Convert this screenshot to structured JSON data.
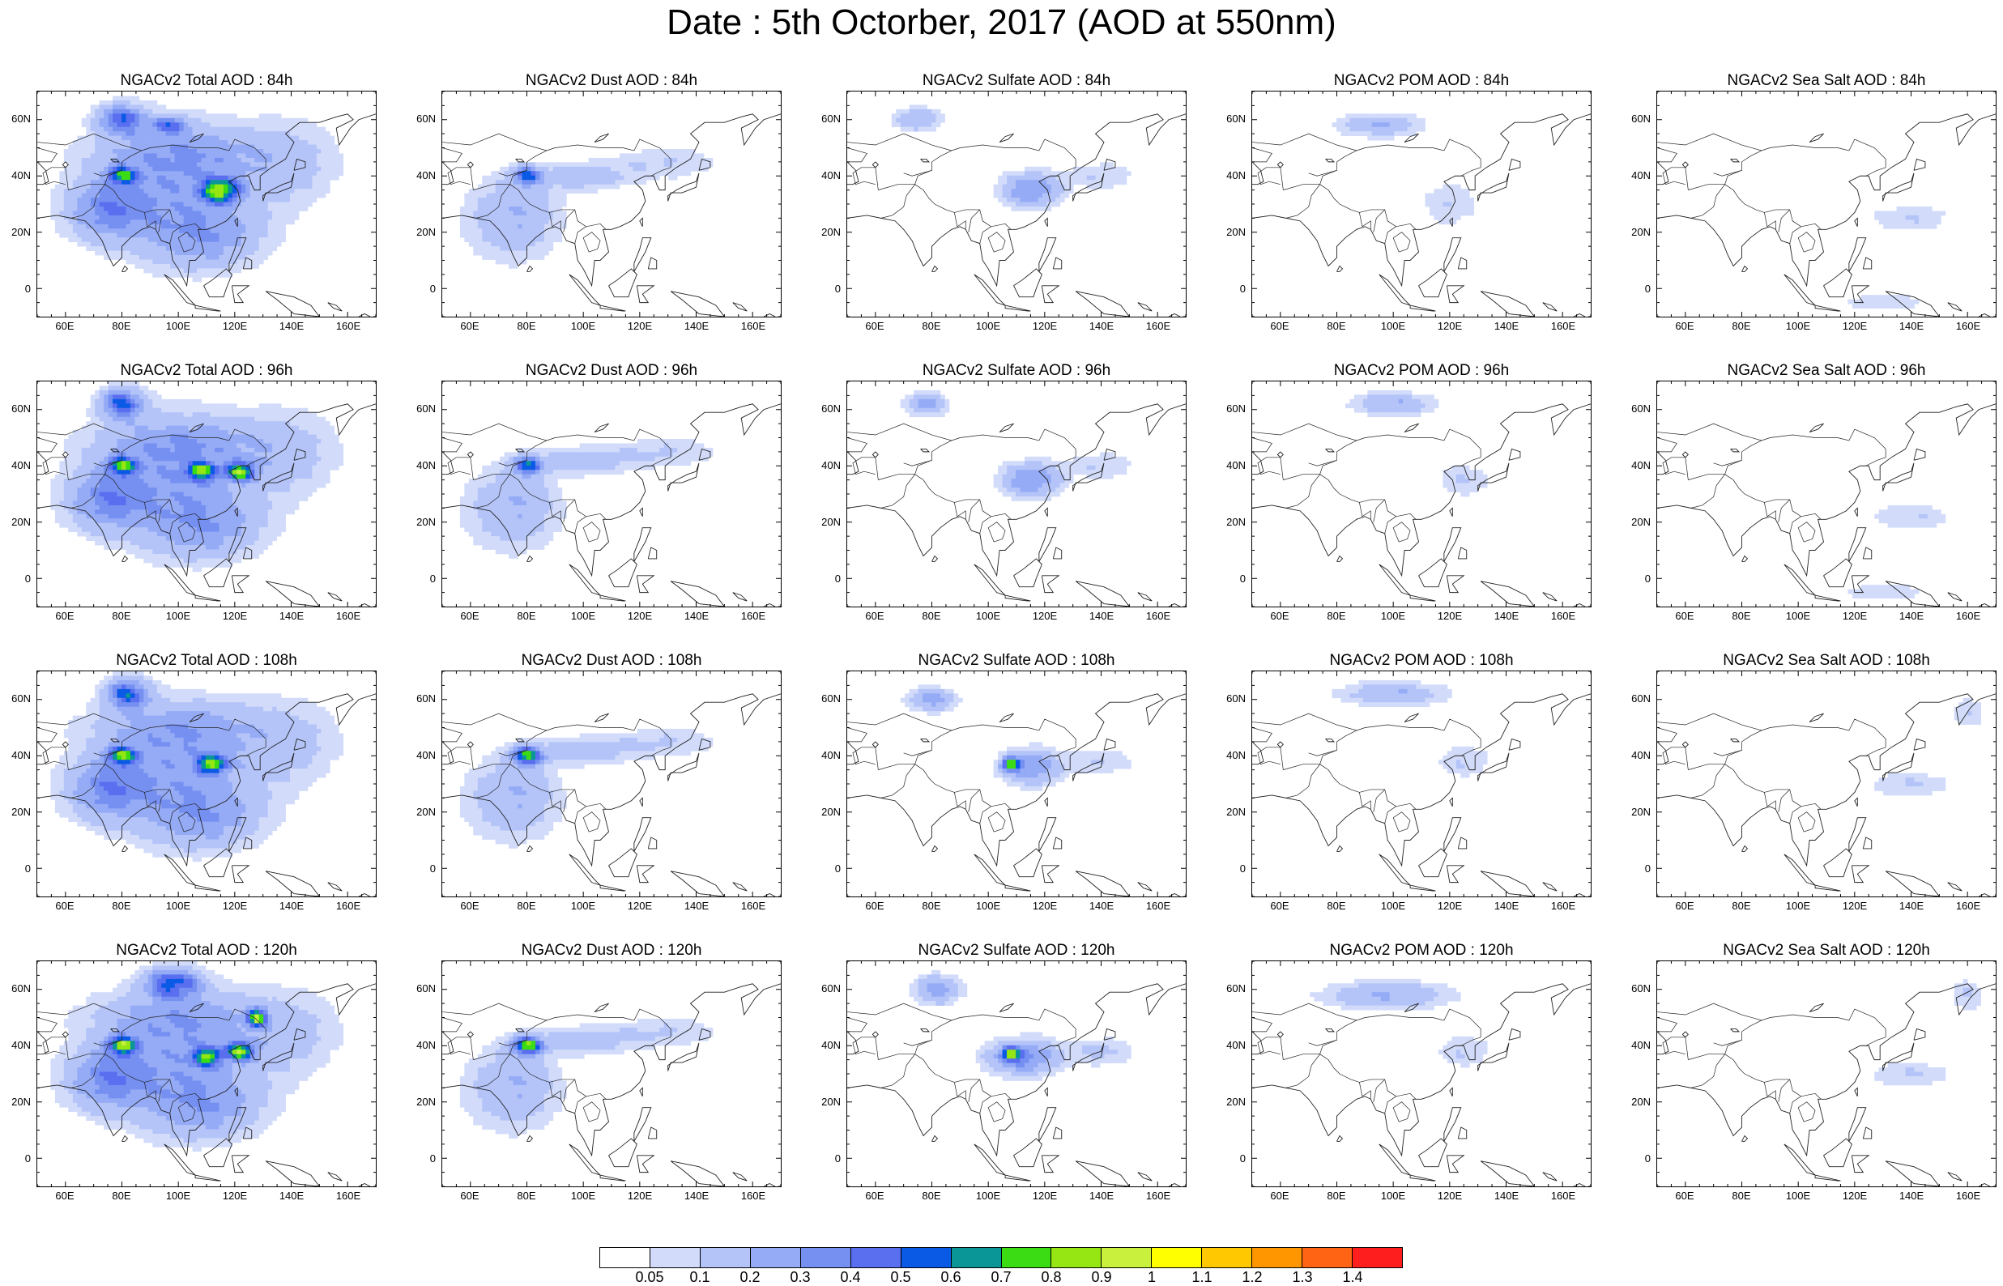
{
  "title": "Date : 5th Octorber, 2017 (AOD at 550nm)",
  "y_tick_labels": [
    "60N",
    "40N",
    "20N",
    "0"
  ],
  "x_tick_labels": [
    "60E",
    "80E",
    "100E",
    "120E",
    "140E",
    "160E"
  ],
  "map_extent": {
    "lon_min": 50,
    "lon_max": 170,
    "lat_min": -10,
    "lat_max": 70
  },
  "species": [
    "Total",
    "Dust",
    "Sulfate",
    "POM",
    "Sea Salt"
  ],
  "forecast_hours": [
    "84h",
    "96h",
    "108h",
    "120h"
  ],
  "panels": [
    [
      "NGACv2 Total AOD : 84h",
      "NGACv2 Dust AOD : 84h",
      "NGACv2 Sulfate AOD : 84h",
      "NGACv2 POM AOD : 84h",
      "NGACv2 Sea Salt AOD : 84h"
    ],
    [
      "NGACv2 Total AOD : 96h",
      "NGACv2 Dust AOD : 96h",
      "NGACv2 Sulfate AOD : 96h",
      "NGACv2 POM AOD : 96h",
      "NGACv2 Sea Salt AOD : 96h"
    ],
    [
      "NGACv2 Total AOD : 108h",
      "NGACv2 Dust AOD : 108h",
      "NGACv2 Sulfate AOD : 108h",
      "NGACv2 POM AOD : 108h",
      "NGACv2 Sea Salt AOD : 108h"
    ],
    [
      "NGACv2 Total AOD : 120h",
      "NGACv2 Dust AOD : 120h",
      "NGACv2 Sulfate AOD : 120h",
      "NGACv2 POM AOD : 120h",
      "NGACv2 Sea Salt  AOD : 120h"
    ]
  ],
  "colorbar": {
    "labels": [
      "0.05",
      "0.1",
      "0.2",
      "0.3",
      "0.4",
      "0.5",
      "0.6",
      "0.7",
      "0.8",
      "0.9",
      "1",
      "1.1",
      "1.2",
      "1.3",
      "1.4"
    ],
    "colors": [
      "#ffffff",
      "#d2dcfa",
      "#b4c4f8",
      "#95abf6",
      "#7690f2",
      "#5a6ef0",
      "#0a5ae6",
      "#0a9696",
      "#3cdc14",
      "#96e614",
      "#c8f03c",
      "#ffff00",
      "#ffc800",
      "#ff9600",
      "#ff6414",
      "#ff1e1e"
    ]
  },
  "chart_data": [
    {
      "type": "heatmap",
      "title": "NGACv2 Total AOD : 84h",
      "lon_range": [
        50,
        170
      ],
      "lat_range": [
        -10,
        70
      ],
      "blobs": [
        [
          100,
          35,
          28,
          22,
          0.25
        ],
        [
          75,
          28,
          14,
          10,
          0.3
        ],
        [
          110,
          18,
          18,
          10,
          0.2
        ],
        [
          80,
          60,
          8,
          5,
          0.45
        ],
        [
          97,
          58,
          6,
          3,
          0.35
        ],
        [
          80,
          40,
          5,
          3,
          0.5
        ],
        [
          115,
          35,
          6,
          4,
          0.75
        ],
        [
          100,
          48,
          30,
          8,
          0.15
        ],
        [
          140,
          45,
          18,
          15,
          0.12
        ]
      ]
    },
    {
      "type": "heatmap",
      "title": "NGACv2 Dust AOD : 84h",
      "lon_range": [
        50,
        170
      ],
      "lat_range": [
        -10,
        70
      ],
      "blobs": [
        [
          75,
          25,
          16,
          14,
          0.2
        ],
        [
          80,
          40,
          5,
          3,
          0.45
        ],
        [
          100,
          40,
          18,
          5,
          0.15
        ],
        [
          130,
          45,
          18,
          6,
          0.1
        ]
      ]
    },
    {
      "type": "heatmap",
      "title": "NGACv2 Sulfate AOD : 84h",
      "lon_range": [
        50,
        170
      ],
      "lat_range": [
        -10,
        70
      ],
      "blobs": [
        [
          115,
          35,
          10,
          6,
          0.3
        ],
        [
          75,
          60,
          8,
          4,
          0.2
        ],
        [
          140,
          40,
          12,
          5,
          0.1
        ]
      ]
    },
    {
      "type": "heatmap",
      "title": "NGACv2 POM AOD : 84h",
      "lon_range": [
        50,
        170
      ],
      "lat_range": [
        -10,
        70
      ],
      "blobs": [
        [
          95,
          58,
          14,
          4,
          0.2
        ],
        [
          120,
          30,
          10,
          8,
          0.1
        ]
      ]
    },
    {
      "type": "heatmap",
      "title": "NGACv2 Sea Salt AOD : 84h",
      "lon_range": [
        50,
        170
      ],
      "lat_range": [
        -10,
        70
      ],
      "blobs": [
        [
          140,
          25,
          15,
          5,
          0.1
        ],
        [
          130,
          -5,
          15,
          3,
          0.1
        ]
      ]
    },
    {
      "type": "heatmap",
      "title": "NGACv2 Total AOD : 96h",
      "lon_range": [
        50,
        170
      ],
      "lat_range": [
        -10,
        70
      ],
      "blobs": [
        [
          100,
          35,
          28,
          22,
          0.25
        ],
        [
          75,
          28,
          14,
          10,
          0.3
        ],
        [
          110,
          18,
          18,
          10,
          0.2
        ],
        [
          80,
          62,
          7,
          5,
          0.5
        ],
        [
          80,
          40,
          5,
          3,
          0.55
        ],
        [
          108,
          38,
          5,
          3,
          0.6
        ],
        [
          122,
          38,
          5,
          3,
          0.65
        ],
        [
          100,
          48,
          30,
          8,
          0.15
        ],
        [
          140,
          45,
          18,
          15,
          0.12
        ]
      ]
    },
    {
      "type": "heatmap",
      "title": "NGACv2 Dust AOD : 96h",
      "lon_range": [
        50,
        170
      ],
      "lat_range": [
        -10,
        70
      ],
      "blobs": [
        [
          75,
          25,
          16,
          14,
          0.2
        ],
        [
          80,
          40,
          5,
          3,
          0.5
        ],
        [
          100,
          42,
          18,
          5,
          0.15
        ],
        [
          130,
          45,
          18,
          6,
          0.1
        ]
      ]
    },
    {
      "type": "heatmap",
      "title": "NGACv2 Sulfate AOD : 96h",
      "lon_range": [
        50,
        170
      ],
      "lat_range": [
        -10,
        70
      ],
      "blobs": [
        [
          115,
          35,
          10,
          6,
          0.3
        ],
        [
          78,
          62,
          7,
          4,
          0.25
        ],
        [
          140,
          40,
          12,
          5,
          0.1
        ]
      ]
    },
    {
      "type": "heatmap",
      "title": "NGACv2 POM AOD : 96h",
      "lon_range": [
        50,
        170
      ],
      "lat_range": [
        -10,
        70
      ],
      "blobs": [
        [
          100,
          62,
          14,
          4,
          0.2
        ],
        [
          125,
          35,
          10,
          6,
          0.1
        ]
      ]
    },
    {
      "type": "heatmap",
      "title": "NGACv2 Sea Salt AOD : 96h",
      "lon_range": [
        50,
        170
      ],
      "lat_range": [
        -10,
        70
      ],
      "blobs": [
        [
          140,
          22,
          15,
          5,
          0.1
        ],
        [
          130,
          -5,
          15,
          3,
          0.1
        ]
      ]
    },
    {
      "type": "heatmap",
      "title": "NGACv2 Total AOD : 108h",
      "lon_range": [
        50,
        170
      ],
      "lat_range": [
        -10,
        70
      ],
      "blobs": [
        [
          100,
          35,
          28,
          22,
          0.25
        ],
        [
          75,
          28,
          14,
          10,
          0.3
        ],
        [
          110,
          18,
          18,
          10,
          0.2
        ],
        [
          82,
          62,
          7,
          5,
          0.5
        ],
        [
          80,
          40,
          5,
          3,
          0.6
        ],
        [
          112,
          37,
          5,
          3,
          0.65
        ],
        [
          100,
          50,
          30,
          8,
          0.15
        ],
        [
          140,
          45,
          18,
          15,
          0.12
        ]
      ]
    },
    {
      "type": "heatmap",
      "title": "NGACv2 Dust AOD : 108h",
      "lon_range": [
        50,
        170
      ],
      "lat_range": [
        -10,
        70
      ],
      "blobs": [
        [
          75,
          25,
          16,
          14,
          0.2
        ],
        [
          80,
          40,
          5,
          3,
          0.65
        ],
        [
          100,
          42,
          18,
          5,
          0.15
        ],
        [
          130,
          45,
          18,
          6,
          0.1
        ]
      ]
    },
    {
      "type": "heatmap",
      "title": "NGACv2 Sulfate AOD : 108h",
      "lon_range": [
        50,
        170
      ],
      "lat_range": [
        -10,
        70
      ],
      "blobs": [
        [
          115,
          36,
          10,
          6,
          0.3
        ],
        [
          80,
          60,
          8,
          4,
          0.25
        ],
        [
          108,
          37,
          3,
          2,
          0.7
        ],
        [
          140,
          38,
          12,
          5,
          0.1
        ]
      ]
    },
    {
      "type": "heatmap",
      "title": "NGACv2 POM AOD : 108h",
      "lon_range": [
        50,
        170
      ],
      "lat_range": [
        -10,
        70
      ],
      "blobs": [
        [
          100,
          62,
          18,
          4,
          0.2
        ],
        [
          125,
          38,
          10,
          6,
          0.1
        ]
      ]
    },
    {
      "type": "heatmap",
      "title": "NGACv2 Sea Salt AOD : 108h",
      "lon_range": [
        50,
        170
      ],
      "lat_range": [
        -10,
        70
      ],
      "blobs": [
        [
          140,
          30,
          15,
          5,
          0.1
        ],
        [
          160,
          55,
          6,
          6,
          0.1
        ]
      ]
    },
    {
      "type": "heatmap",
      "title": "NGACv2 Total AOD : 120h",
      "lon_range": [
        50,
        170
      ],
      "lat_range": [
        -10,
        70
      ],
      "blobs": [
        [
          100,
          35,
          28,
          22,
          0.25
        ],
        [
          75,
          28,
          14,
          10,
          0.3
        ],
        [
          110,
          18,
          18,
          10,
          0.2
        ],
        [
          98,
          62,
          9,
          5,
          0.5
        ],
        [
          80,
          40,
          5,
          3,
          0.65
        ],
        [
          110,
          36,
          5,
          3,
          0.6
        ],
        [
          122,
          38,
          5,
          3,
          0.65
        ],
        [
          128,
          50,
          3,
          3,
          0.7
        ],
        [
          100,
          50,
          30,
          8,
          0.15
        ],
        [
          140,
          45,
          18,
          15,
          0.12
        ]
      ]
    },
    {
      "type": "heatmap",
      "title": "NGACv2 Dust AOD : 120h",
      "lon_range": [
        50,
        170
      ],
      "lat_range": [
        -10,
        70
      ],
      "blobs": [
        [
          75,
          25,
          16,
          14,
          0.2
        ],
        [
          80,
          40,
          5,
          3,
          0.7
        ],
        [
          100,
          42,
          18,
          5,
          0.15
        ],
        [
          130,
          45,
          18,
          6,
          0.1
        ]
      ]
    },
    {
      "type": "heatmap",
      "title": "NGACv2 Sulfate AOD : 120h",
      "lon_range": [
        50,
        170
      ],
      "lat_range": [
        -10,
        70
      ],
      "blobs": [
        [
          112,
          36,
          12,
          6,
          0.35
        ],
        [
          82,
          60,
          8,
          5,
          0.25
        ],
        [
          108,
          37,
          3,
          2,
          0.7
        ],
        [
          140,
          38,
          12,
          5,
          0.12
        ]
      ]
    },
    {
      "type": "heatmap",
      "title": "NGACv2 POM AOD : 120h",
      "lon_range": [
        50,
        170
      ],
      "lat_range": [
        -10,
        70
      ],
      "blobs": [
        [
          98,
          58,
          22,
          5,
          0.2
        ],
        [
          125,
          38,
          10,
          6,
          0.1
        ]
      ]
    },
    {
      "type": "heatmap",
      "title": "NGACv2 Sea Salt  AOD : 120h",
      "lon_range": [
        50,
        170
      ],
      "lat_range": [
        -10,
        70
      ],
      "blobs": [
        [
          140,
          30,
          15,
          5,
          0.1
        ],
        [
          160,
          58,
          6,
          6,
          0.1
        ]
      ]
    }
  ]
}
